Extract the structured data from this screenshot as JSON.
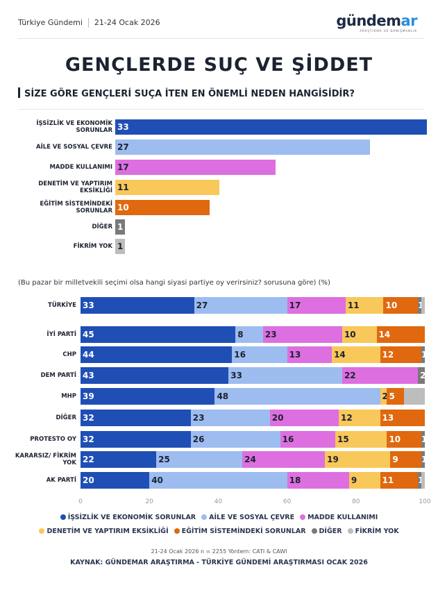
{
  "header": {
    "left": "Türkiye Gündemi",
    "date": "21-24 Ocak 2026",
    "logo": "gündemar",
    "logo_sub": "ARAŞTIRMA VE DANIŞMANLIK"
  },
  "title": "GENÇLERDE SUÇ VE ŞİDDET",
  "question": "SİZE GÖRE GENÇLERİ SUÇA İTEN EN ÖNEMLİ NEDEN HANGİSİDİR?",
  "note": "(Bu pazar bir milletvekili seçimi olsa hangi siyasi partiye oy verirsiniz? sorusuna göre) (%)",
  "footer": {
    "method": "21-24 Ocak 2026 n = 2255 Yöntem: CATI & CAWI",
    "source": "KAYNAK: GÜNDEMAR ARAŞTIRMA - TÜRKİYE GÜNDEMİ ARAŞTIRMASI OCAK 2026"
  },
  "chart_data": [
    {
      "type": "bar",
      "orientation": "horizontal",
      "categories": [
        "İŞSİZLİK VE EKONOMİK SORUNLAR",
        "AİLE VE SOSYAL ÇEVRE",
        "MADDE KULLANIMI",
        "DENETİM VE YAPTIRIM EKSİKLİĞİ",
        "EĞİTİM SİSTEMİNDEKİ SORUNLAR",
        "DİĞER",
        "FİKRİM YOK"
      ],
      "values": [
        33,
        27,
        17,
        11,
        10,
        1,
        1
      ],
      "colors": [
        "#1f4fb5",
        "#9dbcf0",
        "#dd6fe0",
        "#f9c85a",
        "#e0680f",
        "#7a7a7a",
        "#bdbdbd"
      ]
    },
    {
      "type": "bar",
      "orientation": "horizontal",
      "stacked": true,
      "categories": [
        "TÜRKİYE",
        "İYİ PARTİ",
        "CHP",
        "DEM PARTİ",
        "MHP",
        "DİĞER",
        "PROTESTO OY",
        "KARARSIZ/ FİKRİM YOK",
        "AK PARTİ"
      ],
      "series": [
        {
          "name": "İŞSİZLİK VE EKONOMİK SORUNLAR",
          "color": "#1f4fb5",
          "values": [
            33,
            45,
            44,
            43,
            39,
            32,
            32,
            22,
            20
          ]
        },
        {
          "name": "AİLE VE SOSYAL ÇEVRE",
          "color": "#9dbcf0",
          "values": [
            27,
            8,
            16,
            33,
            48,
            23,
            26,
            25,
            40
          ]
        },
        {
          "name": "MADDE KULLANIMI",
          "color": "#dd6fe0",
          "values": [
            17,
            23,
            13,
            22,
            0,
            20,
            16,
            24,
            18
          ]
        },
        {
          "name": "DENETİM VE YAPTIRIM EKSİKLİĞİ",
          "color": "#f9c85a",
          "values": [
            11,
            10,
            14,
            0,
            2,
            12,
            15,
            19,
            9
          ]
        },
        {
          "name": "EĞİTİM SİSTEMİNDEKİ SORUNLAR",
          "color": "#e0680f",
          "values": [
            10,
            14,
            12,
            0,
            5,
            13,
            10,
            9,
            11
          ]
        },
        {
          "name": "DİĞER",
          "color": "#7a7a7a",
          "values": [
            1,
            0,
            1,
            2,
            0,
            0,
            1,
            1,
            1
          ]
        },
        {
          "name": "FİKRİM YOK",
          "color": "#bdbdbd",
          "values": [
            1,
            0,
            0,
            0,
            6,
            0,
            0,
            0,
            1
          ]
        }
      ],
      "xlim": [
        0,
        100
      ],
      "xticks": [
        "0",
        "20",
        "40",
        "60",
        "80",
        "100"
      ],
      "legend": "bottom"
    }
  ]
}
